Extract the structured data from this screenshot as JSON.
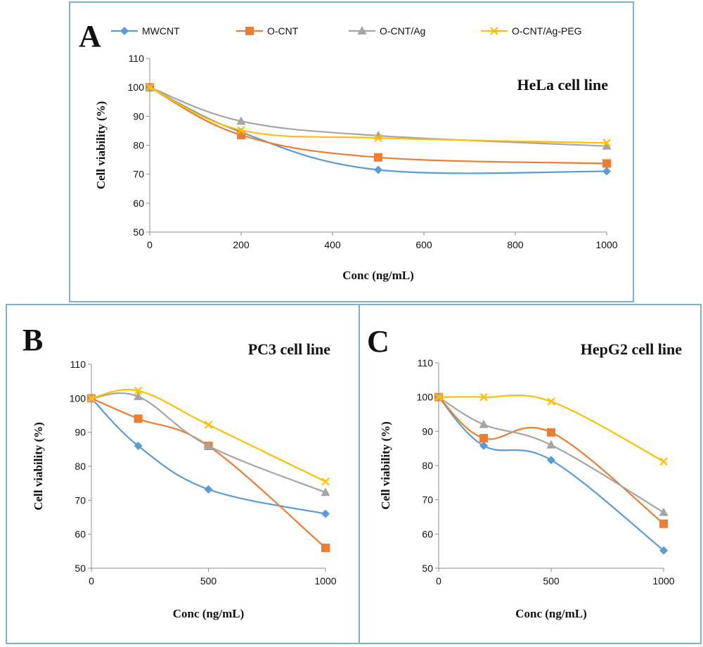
{
  "legend": [
    {
      "name": "MWCNT",
      "color": "#5b9bd5",
      "marker": "diamond"
    },
    {
      "name": "O-CNT",
      "color": "#ed7d31",
      "marker": "square"
    },
    {
      "name": "O-CNT/Ag",
      "color": "#a5a5a5",
      "marker": "triangle"
    },
    {
      "name": "O-CNT/Ag-PEG",
      "color": "#ffc000",
      "marker": "cross"
    }
  ],
  "chart_data": [
    {
      "panel": "A",
      "subtitle": "HeLa cell line",
      "type": "line",
      "xlabel": "Conc (ng/mL)",
      "ylabel": "Cell viability (%)",
      "x": [
        0,
        200,
        500,
        1000
      ],
      "xlim": [
        0,
        1000
      ],
      "xticks": [
        0,
        200,
        400,
        600,
        800,
        1000
      ],
      "ylim": [
        50,
        110
      ],
      "yticks": [
        50,
        60,
        70,
        80,
        90,
        100,
        110
      ],
      "series": [
        {
          "name": "MWCNT",
          "values": [
            100,
            84.5,
            71.5,
            71
          ]
        },
        {
          "name": "O-CNT",
          "values": [
            100,
            83.5,
            75.8,
            73.7
          ]
        },
        {
          "name": "O-CNT/Ag",
          "values": [
            100,
            88.3,
            83.3,
            79.7
          ]
        },
        {
          "name": "O-CNT/Ag-PEG",
          "values": [
            100,
            85.2,
            82.5,
            80.8
          ]
        }
      ]
    },
    {
      "panel": "B",
      "subtitle": "PC3 cell line",
      "type": "line",
      "xlabel": "Conc (ng/mL)",
      "ylabel": "Cell viability (%)",
      "x": [
        0,
        200,
        500,
        1000
      ],
      "xlim": [
        0,
        1000
      ],
      "xticks": [
        0,
        500,
        1000
      ],
      "ylim": [
        50,
        110
      ],
      "yticks": [
        50,
        60,
        70,
        80,
        90,
        100,
        110
      ],
      "series": [
        {
          "name": "MWCNT",
          "values": [
            100,
            86,
            73.2,
            66
          ]
        },
        {
          "name": "O-CNT",
          "values": [
            100,
            94,
            86,
            56
          ]
        },
        {
          "name": "O-CNT/Ag",
          "values": [
            100,
            100.5,
            86,
            72.3
          ]
        },
        {
          "name": "O-CNT/Ag-PEG",
          "values": [
            100,
            102.2,
            92.2,
            75.5
          ]
        }
      ]
    },
    {
      "panel": "C",
      "subtitle": "HepG2 cell line",
      "type": "line",
      "xlabel": "Conc (ng/mL)",
      "ylabel": "Cell viability (%)",
      "x": [
        0,
        200,
        500,
        1000
      ],
      "xlim": [
        0,
        1000
      ],
      "xticks": [
        0,
        500,
        1000
      ],
      "ylim": [
        50,
        110
      ],
      "yticks": [
        50,
        60,
        70,
        80,
        90,
        100,
        110
      ],
      "series": [
        {
          "name": "MWCNT",
          "values": [
            100,
            85.8,
            81.6,
            55.2
          ]
        },
        {
          "name": "O-CNT",
          "values": [
            100,
            88,
            89.7,
            63
          ]
        },
        {
          "name": "O-CNT/Ag",
          "values": [
            100,
            92,
            86,
            66.3
          ]
        },
        {
          "name": "O-CNT/Ag-PEG",
          "values": [
            100,
            100,
            98.7,
            81.2
          ]
        }
      ]
    }
  ]
}
